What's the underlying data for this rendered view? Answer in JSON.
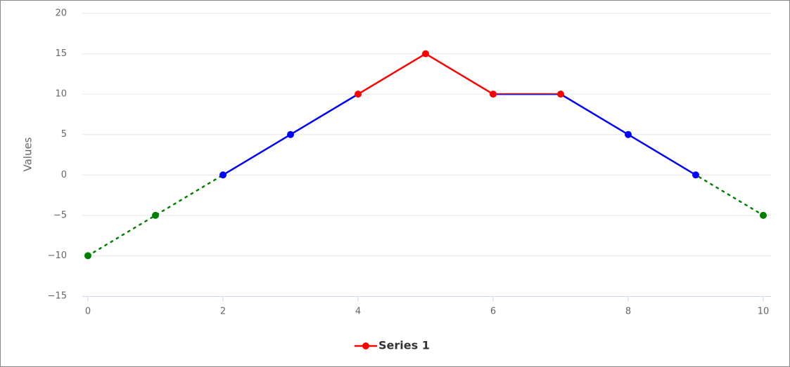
{
  "chart_data": {
    "type": "line",
    "y_axis_label": "Values",
    "x": [
      0,
      1,
      2,
      3,
      4,
      5,
      6,
      7,
      8,
      9,
      10
    ],
    "series": [
      {
        "name": "Series 1",
        "color": "red",
        "values": [
          -10,
          -5,
          0,
          5,
          10,
          15,
          10,
          10,
          5,
          0,
          -5
        ],
        "zones": [
          {
            "value": 0,
            "color": "green",
            "dash": "dot"
          },
          {
            "value": 10,
            "color": "blue"
          },
          {
            "color": "red"
          }
        ]
      }
    ],
    "xlim": [
      0,
      10
    ],
    "xticks": [
      0,
      2,
      4,
      6,
      8,
      10
    ],
    "ylim": [
      -15,
      20
    ],
    "yticks": [
      {
        "value": -15,
        "label": "−15"
      },
      {
        "value": -10,
        "label": "−10"
      },
      {
        "value": -5,
        "label": "−5"
      },
      0,
      5,
      10,
      15,
      20
    ],
    "grid": true,
    "legend": "bottom"
  }
}
